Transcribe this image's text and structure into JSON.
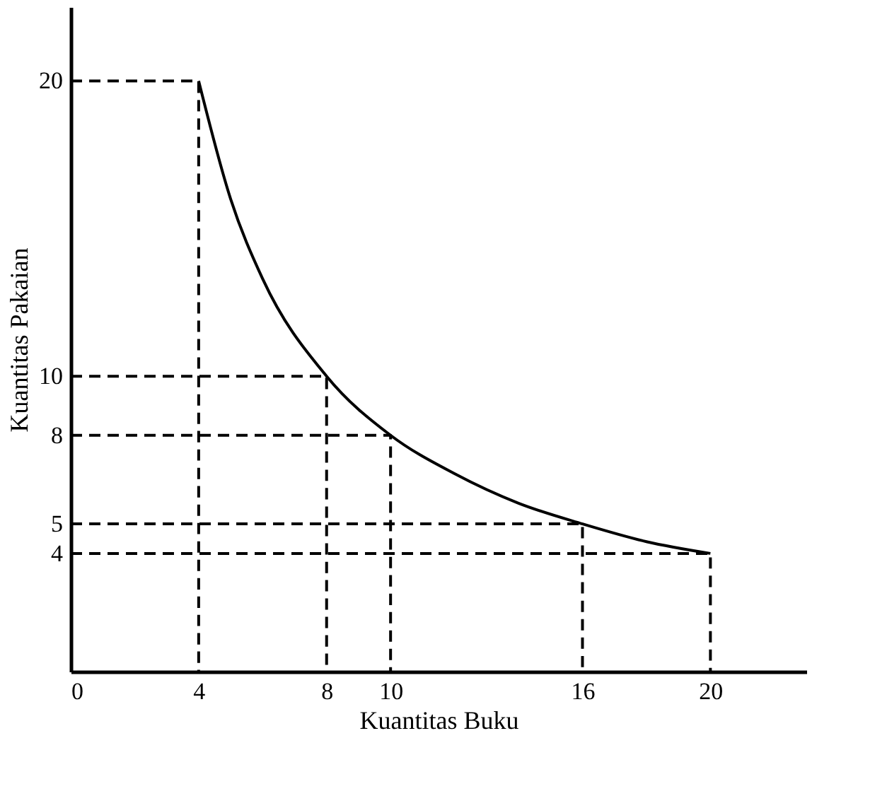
{
  "chart_data": {
    "type": "line",
    "xlabel": "Kuantitas Buku",
    "ylabel": "Kuantitas Pakaian",
    "xlim": [
      0,
      23
    ],
    "ylim": [
      0,
      22.5
    ],
    "xticks": [
      0,
      4,
      8,
      10,
      16,
      20
    ],
    "yticks": [
      4,
      5,
      8,
      10,
      20
    ],
    "grid": false,
    "marker": "none",
    "series": [
      {
        "color": "#000000",
        "line_style": "solid",
        "x": [
          4,
          5,
          6,
          8,
          10,
          12,
          14,
          16,
          18,
          20
        ],
        "values": [
          20,
          16,
          13.3,
          10,
          8,
          6.7,
          5.7,
          5,
          4.4,
          4
        ]
      },
      {
        "type": "line",
        "color": "#000000",
        "line_style": "dashed",
        "x": [
          0,
          4,
          4
        ],
        "values": [
          20,
          20,
          0
        ]
      },
      {
        "type": "line",
        "color": "#000000",
        "line_style": "dashed",
        "x": [
          0,
          8,
          8
        ],
        "values": [
          10,
          10,
          0
        ]
      },
      {
        "type": "line",
        "color": "#000000",
        "line_style": "dashed",
        "x": [
          0,
          10,
          10
        ],
        "values": [
          8,
          8,
          0
        ]
      },
      {
        "type": "line",
        "color": "#000000",
        "line_style": "dashed",
        "x": [
          0,
          16,
          16
        ],
        "values": [
          5,
          5,
          0
        ]
      },
      {
        "type": "line",
        "color": "#000000",
        "line_style": "dashed",
        "x": [
          0,
          20,
          20
        ],
        "values": [
          4,
          4,
          0
        ]
      }
    ]
  }
}
